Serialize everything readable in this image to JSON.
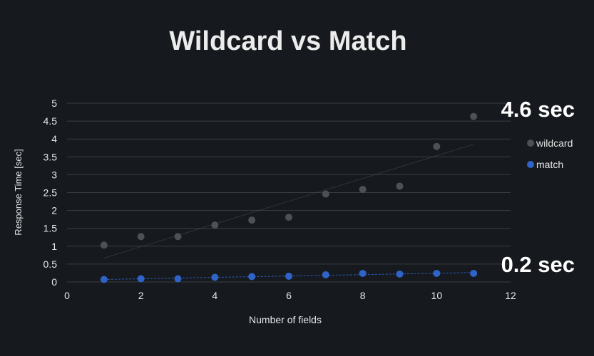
{
  "chart_data": {
    "type": "scatter",
    "title": "Wildcard vs Match",
    "xlabel": "Number of fields",
    "ylabel": "Response Time [sec]",
    "xlim": [
      0,
      12
    ],
    "ylim": [
      0,
      5
    ],
    "xticks": [
      "0",
      "2",
      "4",
      "6",
      "8",
      "10",
      "12"
    ],
    "yticks": [
      "0",
      "0.5",
      "1",
      "1.5",
      "2",
      "2.5",
      "3",
      "3.5",
      "4",
      "4.5",
      "5"
    ],
    "grid": true,
    "legend_position": "right",
    "series": [
      {
        "name": "wildcard",
        "color": "#4d5055",
        "trendline": true,
        "x": [
          1,
          2,
          3,
          4,
          5,
          6,
          7,
          8,
          9,
          10,
          11
        ],
        "y": [
          1.03,
          1.27,
          1.27,
          1.59,
          1.73,
          1.81,
          2.46,
          2.59,
          2.68,
          3.79,
          4.63
        ]
      },
      {
        "name": "match",
        "color": "#2f63c8",
        "trendline": true,
        "x": [
          1,
          2,
          3,
          4,
          5,
          6,
          7,
          8,
          9,
          10,
          11
        ],
        "y": [
          0.07,
          0.09,
          0.09,
          0.13,
          0.15,
          0.16,
          0.2,
          0.24,
          0.22,
          0.24,
          0.24
        ]
      }
    ],
    "annotations": [
      {
        "text": "4.6 sec",
        "series": "wildcard"
      },
      {
        "text": "0.2 sec",
        "series": "match"
      }
    ]
  },
  "colors": {
    "background": "#16191e",
    "grid": "#3a3d42",
    "text": "#e9e9e9",
    "title": "#ececec"
  }
}
